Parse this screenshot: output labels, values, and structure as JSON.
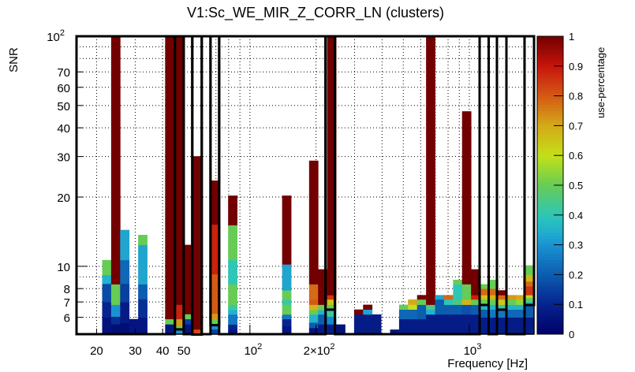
{
  "chart_data": {
    "type": "heatmap",
    "title": "V1:Sc_WE_MIR_Z_CORR_LN (clusters)",
    "xlabel": "Frequency [Hz]",
    "ylabel": "SNR",
    "zlabel": "use-percentage",
    "x_scale": "log",
    "y_scale": "log",
    "xlim": [
      16.2,
      1972
    ],
    "ylim": [
      5.07,
      100
    ],
    "zlim": [
      0,
      1
    ],
    "grid": true,
    "x_bins": {
      "min_hz": 21.2,
      "max_hz": 1972,
      "count": 48
    },
    "x_ticks": [
      {
        "value": 20,
        "base": "20",
        "exp": ""
      },
      {
        "value": 30,
        "base": "30",
        "exp": ""
      },
      {
        "value": 40,
        "base": "40",
        "exp": ""
      },
      {
        "value": 50,
        "base": "50",
        "exp": ""
      },
      {
        "value": 100,
        "base": "10",
        "exp": "2"
      },
      {
        "value": 200,
        "base": "2×10",
        "exp": "2"
      },
      {
        "value": 1000,
        "base": "10",
        "exp": "3"
      }
    ],
    "y_ticks": [
      {
        "value": 100,
        "base": "10",
        "exp": "2"
      },
      {
        "value": 70,
        "base": "70",
        "exp": ""
      },
      {
        "value": 60,
        "base": "60",
        "exp": ""
      },
      {
        "value": 50,
        "base": "50",
        "exp": ""
      },
      {
        "value": 40,
        "base": "40",
        "exp": ""
      },
      {
        "value": 30,
        "base": "30",
        "exp": ""
      },
      {
        "value": 20,
        "base": "20",
        "exp": ""
      },
      {
        "value": 10,
        "base": "10",
        "exp": ""
      },
      {
        "value": 8,
        "base": "8",
        "exp": ""
      },
      {
        "value": 7,
        "base": "7",
        "exp": ""
      },
      {
        "value": 6,
        "base": "6",
        "exp": ""
      }
    ],
    "x_grid": [
      20,
      30,
      40,
      50,
      60,
      70,
      80,
      90,
      100,
      200,
      300,
      400,
      500,
      600,
      700,
      800,
      900,
      1000
    ],
    "y_grid": [
      6,
      7,
      8,
      9,
      10,
      20,
      30,
      40,
      50,
      60,
      70,
      80,
      90
    ],
    "z_ticks": [
      "0",
      "0.1",
      "0.2",
      "0.3",
      "0.4",
      "0.5",
      "0.6",
      "0.7",
      "0.8",
      "0.9",
      "1"
    ],
    "colormap": [
      [
        0.0,
        "#00006a"
      ],
      [
        0.1,
        "#06238e"
      ],
      [
        0.2,
        "#0c5cb0"
      ],
      [
        0.3,
        "#1a92d2"
      ],
      [
        0.35,
        "#22b2cc"
      ],
      [
        0.4,
        "#2ec6b6"
      ],
      [
        0.5,
        "#66cc55"
      ],
      [
        0.6,
        "#c4e018"
      ],
      [
        0.7,
        "#d4aa18"
      ],
      [
        0.8,
        "#d45a14"
      ],
      [
        0.9,
        "#c8140c"
      ],
      [
        1.0,
        "#720000"
      ]
    ],
    "columns": [
      {
        "bin": 0,
        "cells": [
          [
            6.0,
            0.05
          ],
          [
            7.0,
            0.1
          ],
          [
            8.4,
            0.17
          ],
          [
            9.17,
            0.35
          ],
          [
            10.65,
            0.5
          ]
        ]
      },
      {
        "bin": 1,
        "cells": [
          [
            5.6,
            0.04
          ],
          [
            6.05,
            0.12
          ],
          [
            6.81,
            0.3
          ],
          [
            8.36,
            0.5
          ],
          [
            100,
            1
          ]
        ]
      },
      {
        "bin": 2,
        "cells": [
          [
            5.7,
            0.04
          ],
          [
            7,
            0.08
          ],
          [
            8.4,
            0.15
          ],
          [
            10.65,
            0.22
          ],
          [
            14.4,
            0.33
          ]
        ]
      },
      {
        "bin": 3,
        "cells": [
          [
            5.9,
            0.06
          ]
        ]
      },
      {
        "bin": 4,
        "cells": [
          [
            6,
            0.06
          ],
          [
            7.2,
            0.12
          ],
          [
            8.36,
            0.2
          ],
          [
            12.4,
            0.33
          ],
          [
            13.7,
            0.5
          ]
        ]
      },
      {
        "bin": 7,
        "cells": [
          [
            5.6,
            0.06
          ],
          [
            5.9,
            0.5
          ],
          [
            100,
            1
          ]
        ]
      },
      {
        "bin": 8,
        "cells": [
          [
            5.32,
            0.3
          ],
          [
            5.5,
            0.5
          ],
          [
            5.9,
            0.72
          ],
          [
            6.81,
            0.88
          ],
          [
            100,
            1
          ]
        ]
      },
      {
        "bin": 9,
        "cells": [
          [
            5.6,
            0.06
          ],
          [
            5.9,
            0.15
          ],
          [
            6.2,
            0.5
          ],
          [
            12.4,
            1
          ]
        ]
      },
      {
        "bin": 10,
        "cells": [
          [
            5.32,
            0.82
          ],
          [
            30.1,
            1
          ]
        ]
      },
      {
        "bin": 12,
        "cells": [
          [
            5.32,
            0.15
          ],
          [
            5.55,
            0.3
          ],
          [
            5.9,
            0.5
          ],
          [
            6.23,
            0.72
          ],
          [
            9.24,
            0.8
          ],
          [
            15.2,
            0.88
          ],
          [
            23.6,
            1
          ]
        ]
      },
      {
        "bin": 14,
        "cells": [
          [
            5.3,
            0.06
          ],
          [
            5.59,
            0.1
          ],
          [
            6.18,
            0.25
          ],
          [
            6.46,
            0.35
          ],
          [
            6.81,
            0.42
          ],
          [
            8.36,
            0.5
          ],
          [
            10.65,
            0.4
          ],
          [
            15.1,
            0.5
          ],
          [
            20.3,
            1
          ]
        ]
      },
      {
        "bin": 20,
        "cells": [
          [
            5.5,
            0.06
          ],
          [
            5.9,
            0.1
          ],
          [
            6.18,
            0.25
          ],
          [
            6.81,
            0.5
          ],
          [
            7.18,
            0.42
          ],
          [
            7.87,
            0.5
          ],
          [
            10.2,
            0.33
          ],
          [
            20.3,
            1
          ]
        ]
      },
      {
        "bin": 23,
        "cells": [
          [
            5.4,
            0.06
          ],
          [
            5.7,
            0.2
          ],
          [
            6.18,
            0.35
          ],
          [
            6.46,
            0.5
          ],
          [
            6.81,
            0.68
          ],
          [
            7.18,
            0.8
          ],
          [
            8.36,
            0.78
          ],
          [
            28.8,
            1
          ]
        ]
      },
      {
        "bin": 24,
        "cells": [
          [
            5.6,
            0.08
          ],
          [
            6.18,
            0.2
          ],
          [
            6.46,
            0.35
          ],
          [
            6.81,
            0.5
          ],
          [
            9.71,
            1
          ]
        ]
      },
      {
        "bin": 25,
        "cells": [
          [
            5.6,
            0.08
          ],
          [
            6.05,
            0.28
          ],
          [
            6.46,
            0.42
          ],
          [
            6.81,
            0.5
          ],
          [
            7.18,
            0.65
          ],
          [
            7.5,
            0.85
          ],
          [
            100,
            1
          ]
        ]
      },
      {
        "bin": 26,
        "cells": [
          [
            5.59,
            0.05
          ]
        ]
      },
      {
        "bin": 28,
        "cells": [
          [
            6.18,
            0.08
          ],
          [
            6.49,
            1
          ]
        ]
      },
      {
        "bin": 29,
        "cells": [
          [
            6.18,
            0.08
          ],
          [
            6.49,
            0.33
          ],
          [
            6.81,
            1
          ]
        ]
      },
      {
        "bin": 30,
        "cells": [
          [
            6.18,
            0.08
          ]
        ]
      },
      {
        "bin": 32,
        "cells": [
          [
            5.31,
            0.06
          ]
        ]
      },
      {
        "bin": 33,
        "cells": [
          [
            5.9,
            0.08
          ],
          [
            6.49,
            0.22
          ],
          [
            6.81,
            0.5
          ]
        ]
      },
      {
        "bin": 34,
        "cells": [
          [
            5.9,
            0.08
          ],
          [
            6.49,
            0.22
          ],
          [
            6.81,
            0.6
          ],
          [
            7.18,
            0.7
          ]
        ]
      },
      {
        "bin": 35,
        "cells": [
          [
            5.9,
            0.08
          ],
          [
            6.81,
            0.2
          ],
          [
            7.18,
            0.5
          ],
          [
            7.5,
            1
          ]
        ]
      },
      {
        "bin": 36,
        "cells": [
          [
            6.18,
            0.08
          ],
          [
            6.49,
            0.35
          ],
          [
            6.81,
            0.45
          ],
          [
            100,
            1
          ]
        ]
      },
      {
        "bin": 37,
        "cells": [
          [
            6.18,
            0.08
          ],
          [
            7.18,
            0.2
          ],
          [
            7.5,
            0.33
          ]
        ]
      },
      {
        "bin": 38,
        "cells": [
          [
            6.18,
            0.08
          ],
          [
            6.81,
            0.2
          ],
          [
            7.18,
            0.4
          ],
          [
            7.5,
            0.78
          ]
        ]
      },
      {
        "bin": 39,
        "cells": [
          [
            6.18,
            0.08
          ],
          [
            6.81,
            0.2
          ],
          [
            7.18,
            0.45
          ],
          [
            8.36,
            0.4
          ],
          [
            8.74,
            0.5
          ]
        ]
      },
      {
        "bin": 40,
        "cells": [
          [
            6.18,
            0.08
          ],
          [
            6.81,
            0.18
          ],
          [
            7.18,
            0.68
          ],
          [
            8.36,
            0.5
          ],
          [
            47.2,
            1
          ]
        ]
      },
      {
        "bin": 41,
        "cells": [
          [
            6.18,
            0.08
          ],
          [
            6.81,
            0.2
          ],
          [
            7.18,
            0.5
          ],
          [
            7.5,
            0.88
          ],
          [
            9.71,
            1
          ]
        ]
      },
      {
        "bin": 42,
        "cells": [
          [
            6.0,
            0.08
          ],
          [
            6.49,
            0.2
          ],
          [
            6.81,
            0.35
          ],
          [
            7.18,
            0.5
          ],
          [
            7.5,
            0.65
          ],
          [
            8.0,
            0.78
          ],
          [
            8.36,
            0.5
          ]
        ]
      },
      {
        "bin": 43,
        "cells": [
          [
            6.0,
            0.08
          ],
          [
            6.49,
            0.25
          ],
          [
            6.81,
            0.35
          ],
          [
            7.18,
            0.5
          ],
          [
            7.5,
            0.68
          ],
          [
            8.0,
            0.78
          ],
          [
            8.74,
            0.5
          ]
        ]
      },
      {
        "bin": 44,
        "cells": [
          [
            6.0,
            0.08
          ],
          [
            6.49,
            0.25
          ],
          [
            6.81,
            0.42
          ],
          [
            7.18,
            0.65
          ],
          [
            7.5,
            0.78
          ],
          [
            7.87,
            1
          ]
        ]
      },
      {
        "bin": 45,
        "cells": [
          [
            6.0,
            0.08
          ],
          [
            6.49,
            0.22
          ],
          [
            6.81,
            0.35
          ],
          [
            7.18,
            0.5
          ],
          [
            7.5,
            0.72
          ]
        ]
      },
      {
        "bin": 46,
        "cells": [
          [
            6.0,
            0.08
          ],
          [
            6.49,
            0.22
          ],
          [
            6.81,
            0.35
          ],
          [
            7.18,
            0.55
          ],
          [
            7.5,
            0.7
          ]
        ]
      },
      {
        "bin": 47,
        "cells": [
          [
            6.0,
            0.08
          ],
          [
            6.81,
            0.2
          ],
          [
            7.0,
            0.35
          ],
          [
            7.3,
            0.5
          ],
          [
            7.5,
            0.62
          ],
          [
            8.2,
            0.85
          ],
          [
            8.6,
            0.78
          ],
          [
            9.2,
            0.68
          ],
          [
            10.1,
            0.5
          ]
        ]
      }
    ],
    "veto_boxes": [
      [
        16.2,
        45.5,
        5.07
      ],
      [
        45.5,
        49.9,
        5.32
      ],
      [
        49.9,
        54.6,
        5.07
      ],
      [
        54.6,
        60.3,
        5.05
      ],
      [
        60.3,
        66.1,
        5.07
      ],
      [
        66.1,
        72.4,
        5.55
      ],
      [
        72.4,
        221,
        5.07
      ],
      [
        221,
        244,
        6.48
      ],
      [
        244,
        1114,
        5.07
      ],
      [
        1114,
        1225,
        6.79
      ],
      [
        1225,
        1336,
        5.07
      ],
      [
        1336,
        1476,
        6.48
      ],
      [
        1476,
        1785,
        5.07
      ],
      [
        1785,
        1972,
        6.79
      ]
    ]
  }
}
